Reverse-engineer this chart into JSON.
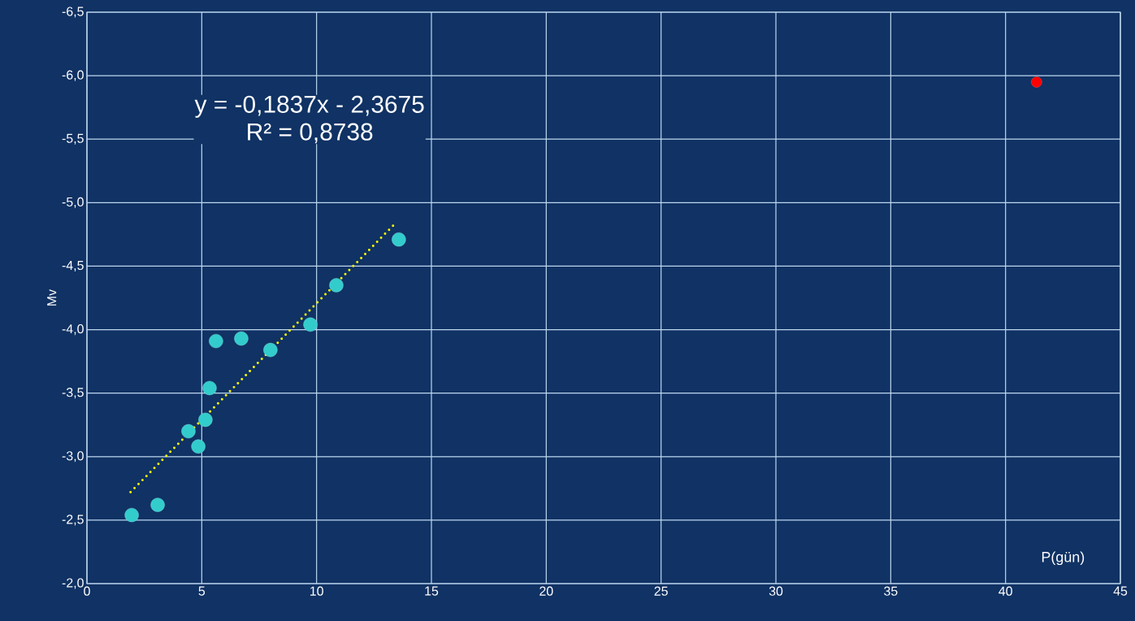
{
  "chart_data": {
    "type": "scatter",
    "xlabel": "P(gün)",
    "ylabel": "Mv",
    "xlim": [
      0,
      45
    ],
    "xticks": [
      0,
      5,
      10,
      15,
      20,
      25,
      30,
      35,
      40,
      45
    ],
    "ylim": [
      -2.0,
      -6.5
    ],
    "yticks": [
      {
        "value": -2.0,
        "label": "-2,0"
      },
      {
        "value": -2.5,
        "label": "-2,5"
      },
      {
        "value": -3.0,
        "label": "-3,0"
      },
      {
        "value": -3.5,
        "label": "-3,5"
      },
      {
        "value": -4.0,
        "label": "-4,0"
      },
      {
        "value": -4.5,
        "label": "-4,5"
      },
      {
        "value": -5.0,
        "label": "-5,0"
      },
      {
        "value": -5.5,
        "label": "-5,5"
      },
      {
        "value": -6.0,
        "label": "-6,0"
      },
      {
        "value": -6.5,
        "label": "-6,5"
      }
    ],
    "grid": true,
    "series": [
      {
        "color": "#33cccc",
        "x": [
          1.95,
          3.08,
          4.42,
          4.85,
          5.16,
          5.34,
          5.62,
          6.72,
          7.99,
          9.73,
          10.86,
          13.58
        ],
        "values": [
          -2.54,
          -2.62,
          -3.2,
          -3.08,
          -3.29,
          -3.54,
          -3.91,
          -3.93,
          -3.84,
          -4.04,
          -4.35,
          -4.71
        ]
      },
      {
        "color": "#ff0000",
        "x": [
          41.35
        ],
        "values": [
          -5.95
        ]
      },
      {
        "type": "line",
        "color": "#ffff00",
        "line_style": "dotted",
        "x": [
          1.9,
          13.5
        ],
        "values": [
          -2.72,
          -4.85
        ]
      }
    ],
    "annotations": [
      "y = -0,1837x - 2,3675",
      "R² = 0,8738"
    ]
  }
}
